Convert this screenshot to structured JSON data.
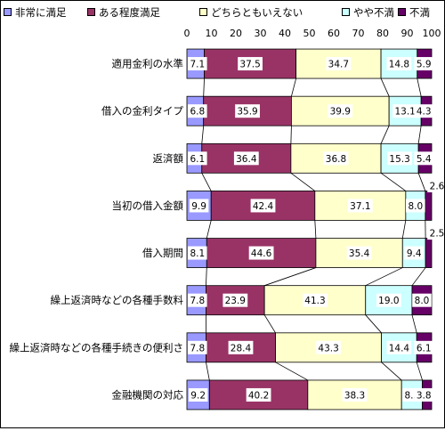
{
  "chart_data": {
    "type": "bar",
    "stacked": true,
    "orientation": "horizontal",
    "title": "",
    "xlim": [
      0,
      100
    ],
    "x_ticks": [
      "0",
      "10",
      "20",
      "30",
      "40",
      "50",
      "60",
      "70",
      "80",
      "90",
      "100"
    ],
    "legend_position": "top",
    "grid": false,
    "series": [
      {
        "name": "非常に満足",
        "color": "#9999FF"
      },
      {
        "name": "ある程度満足",
        "color": "#993366"
      },
      {
        "name": "どちらともいえない",
        "color": "#FFFFCC"
      },
      {
        "name": "やや不満",
        "color": "#CCFFFF"
      },
      {
        "name": "不満",
        "color": "#660066"
      }
    ],
    "categories": [
      "適用金利の水準",
      "借入の金利タイプ",
      "返済額",
      "当初の借入金額",
      "借入期間",
      "繰上返済時などの各種手数料",
      "繰上返済時などの各種手続きの便利さ",
      "金融機関の対応"
    ],
    "values": [
      [
        7.1,
        37.5,
        34.7,
        14.8,
        5.9
      ],
      [
        6.8,
        35.9,
        39.9,
        13.1,
        4.3
      ],
      [
        6.1,
        36.4,
        36.8,
        15.3,
        5.4
      ],
      [
        9.9,
        42.4,
        37.1,
        8.0,
        2.6
      ],
      [
        8.1,
        44.6,
        35.4,
        9.4,
        2.5
      ],
      [
        7.8,
        23.9,
        41.3,
        19.0,
        8.0
      ],
      [
        7.8,
        28.4,
        43.3,
        14.4,
        6.1
      ],
      [
        9.2,
        40.2,
        38.3,
        8.5,
        3.8
      ]
    ],
    "labels": [
      [
        "7.1",
        "37.5",
        "34.7",
        "14.8",
        "5.9"
      ],
      [
        "6.8",
        "35.9",
        "39.9",
        "13.1",
        "4.3"
      ],
      [
        "6.1",
        "36.4",
        "36.8",
        "15.3",
        "5.4"
      ],
      [
        "9.9",
        "42.4",
        "37.1",
        "8.0",
        "2.6"
      ],
      [
        "8.1",
        "44.6",
        "35.4",
        "9.4",
        "2.5"
      ],
      [
        "7.8",
        "23.9",
        "41.3",
        "19.0",
        "8.0"
      ],
      [
        "7.8",
        "28.4",
        "43.3",
        "14.4",
        "6.1"
      ],
      [
        "9.2",
        "40.2",
        "38.3",
        "8.5",
        "3.8"
      ]
    ],
    "series_lines": true
  }
}
